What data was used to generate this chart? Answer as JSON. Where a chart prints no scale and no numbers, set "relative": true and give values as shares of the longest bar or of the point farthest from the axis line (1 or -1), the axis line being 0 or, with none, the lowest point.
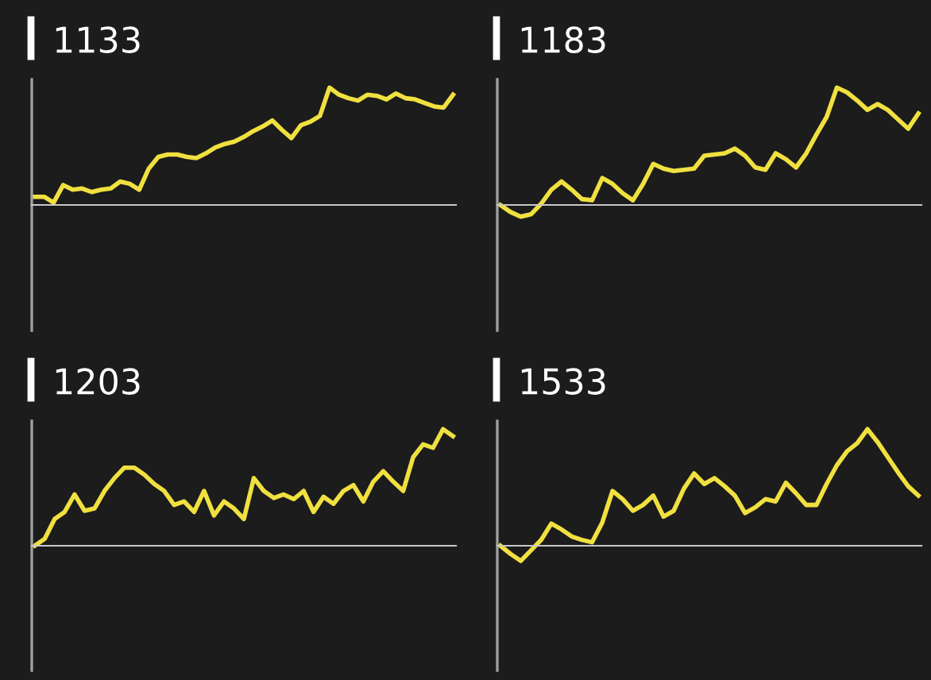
{
  "chart_data": [
    {
      "type": "line",
      "title": "1133",
      "relative": true,
      "tick_labels": false,
      "categories": [
        null,
        null,
        null,
        null,
        null,
        null,
        null,
        null,
        null,
        null,
        null,
        null,
        null,
        null,
        null,
        null,
        null,
        null,
        null,
        null,
        null,
        null,
        null,
        null,
        null,
        null,
        null,
        null,
        null,
        null,
        null,
        null,
        null,
        null,
        null,
        null,
        null,
        null,
        null,
        null,
        null,
        null,
        null,
        null,
        null
      ],
      "series": [
        {
          "color": "#f0e040",
          "values": [
            0.07,
            0.07,
            0.02,
            0.17,
            0.13,
            0.14,
            0.11,
            0.13,
            0.14,
            0.2,
            0.18,
            0.13,
            0.31,
            0.41,
            0.43,
            0.43,
            0.41,
            0.4,
            0.44,
            0.49,
            0.52,
            0.54,
            0.58,
            0.63,
            0.67,
            0.72,
            0.64,
            0.57,
            0.68,
            0.71,
            0.76,
            1.0,
            0.94,
            0.91,
            0.89,
            0.94,
            0.93,
            0.9,
            0.95,
            0.91,
            0.9,
            0.87,
            0.84,
            0.83,
            0.94
          ]
        }
      ]
    },
    {
      "type": "line",
      "title": "1183",
      "relative": true,
      "tick_labels": false,
      "categories": [
        null,
        null,
        null,
        null,
        null,
        null,
        null,
        null,
        null,
        null,
        null,
        null,
        null,
        null,
        null,
        null,
        null,
        null,
        null,
        null,
        null,
        null,
        null,
        null,
        null,
        null,
        null,
        null,
        null,
        null,
        null,
        null,
        null,
        null,
        null,
        null,
        null,
        null,
        null,
        null,
        null,
        null
      ],
      "series": [
        {
          "color": "#f0e040",
          "values": [
            0,
            -0.06,
            -0.1,
            -0.08,
            0.01,
            0.13,
            0.2,
            0.13,
            0.05,
            0.04,
            0.23,
            0.18,
            0.1,
            0.04,
            0.18,
            0.35,
            0.31,
            0.29,
            0.3,
            0.31,
            0.42,
            0.43,
            0.44,
            0.48,
            0.42,
            0.32,
            0.3,
            0.44,
            0.39,
            0.32,
            0.44,
            0.6,
            0.75,
            1.0,
            0.96,
            0.89,
            0.81,
            0.86,
            0.81,
            0.73,
            0.65,
            0.78
          ]
        }
      ]
    },
    {
      "type": "line",
      "title": "1203",
      "relative": true,
      "tick_labels": false,
      "categories": [
        null,
        null,
        null,
        null,
        null,
        null,
        null,
        null,
        null,
        null,
        null,
        null,
        null,
        null,
        null,
        null,
        null,
        null,
        null,
        null,
        null,
        null,
        null,
        null,
        null,
        null,
        null,
        null,
        null,
        null,
        null,
        null,
        null,
        null,
        null,
        null,
        null,
        null,
        null,
        null,
        null,
        null,
        null
      ],
      "series": [
        {
          "color": "#f0e040",
          "values": [
            0,
            0.06,
            0.23,
            0.29,
            0.44,
            0.3,
            0.32,
            0.47,
            0.58,
            0.67,
            0.67,
            0.61,
            0.53,
            0.47,
            0.35,
            0.38,
            0.29,
            0.47,
            0.26,
            0.38,
            0.32,
            0.23,
            0.58,
            0.47,
            0.41,
            0.44,
            0.4,
            0.47,
            0.29,
            0.42,
            0.36,
            0.47,
            0.52,
            0.38,
            0.55,
            0.64,
            0.55,
            0.47,
            0.76,
            0.87,
            0.84,
            1.0,
            0.94
          ]
        }
      ]
    },
    {
      "type": "line",
      "title": "1533",
      "relative": true,
      "tick_labels": false,
      "categories": [
        null,
        null,
        null,
        null,
        null,
        null,
        null,
        null,
        null,
        null,
        null,
        null,
        null,
        null,
        null,
        null,
        null,
        null,
        null,
        null,
        null,
        null,
        null,
        null,
        null,
        null,
        null,
        null,
        null,
        null,
        null,
        null,
        null,
        null,
        null,
        null,
        null,
        null,
        null,
        null,
        null,
        null
      ],
      "series": [
        {
          "color": "#f0e040",
          "values": [
            0,
            -0.07,
            -0.13,
            -0.04,
            0.05,
            0.19,
            0.14,
            0.08,
            0.05,
            0.03,
            0.2,
            0.47,
            0.4,
            0.3,
            0.35,
            0.43,
            0.25,
            0.3,
            0.49,
            0.62,
            0.53,
            0.58,
            0.51,
            0.43,
            0.28,
            0.33,
            0.4,
            0.38,
            0.54,
            0.45,
            0.35,
            0.35,
            0.53,
            0.69,
            0.81,
            0.88,
            1.0,
            0.89,
            0.76,
            0.63,
            0.51,
            0.43
          ]
        }
      ]
    }
  ]
}
